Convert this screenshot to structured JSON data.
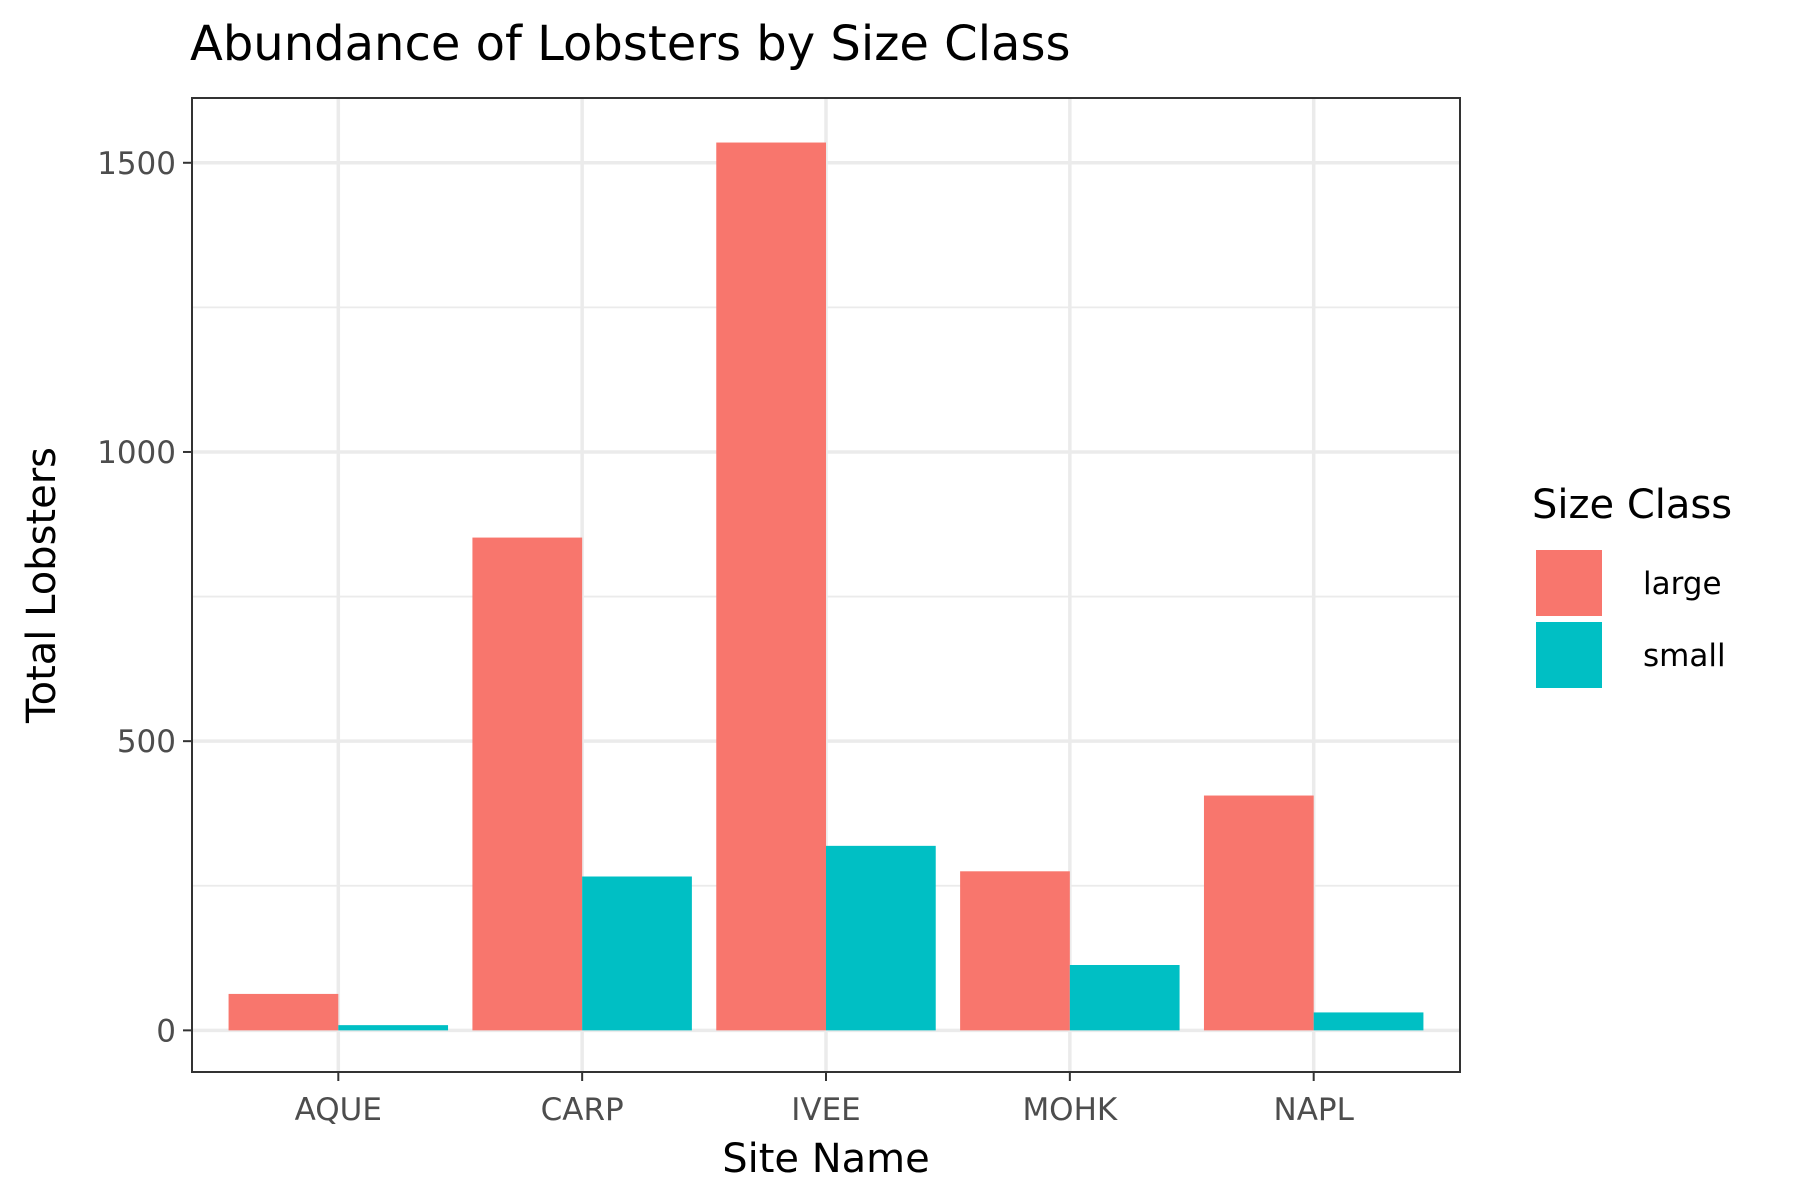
{
  "chart_data": {
    "type": "bar",
    "title": "Abundance of Lobsters by Size Class",
    "xlabel": "Site Name",
    "ylabel": "Total Lobsters",
    "categories": [
      "AQUE",
      "CARP",
      "IVEE",
      "MOHK",
      "NAPL"
    ],
    "series": [
      {
        "name": "large",
        "color": "#F8766D",
        "values": [
          63,
          852,
          1535,
          275,
          406
        ]
      },
      {
        "name": "small",
        "color": "#00BFC4",
        "values": [
          9,
          266,
          319,
          113,
          31
        ]
      }
    ],
    "ylim": [
      -72,
      1612
    ],
    "yticks": [
      0,
      500,
      1000,
      1500
    ],
    "ytick_labels": [
      "0",
      "500",
      "1000",
      "1500"
    ],
    "grid": true,
    "legend": {
      "title": "Size Class",
      "position": "right"
    }
  }
}
